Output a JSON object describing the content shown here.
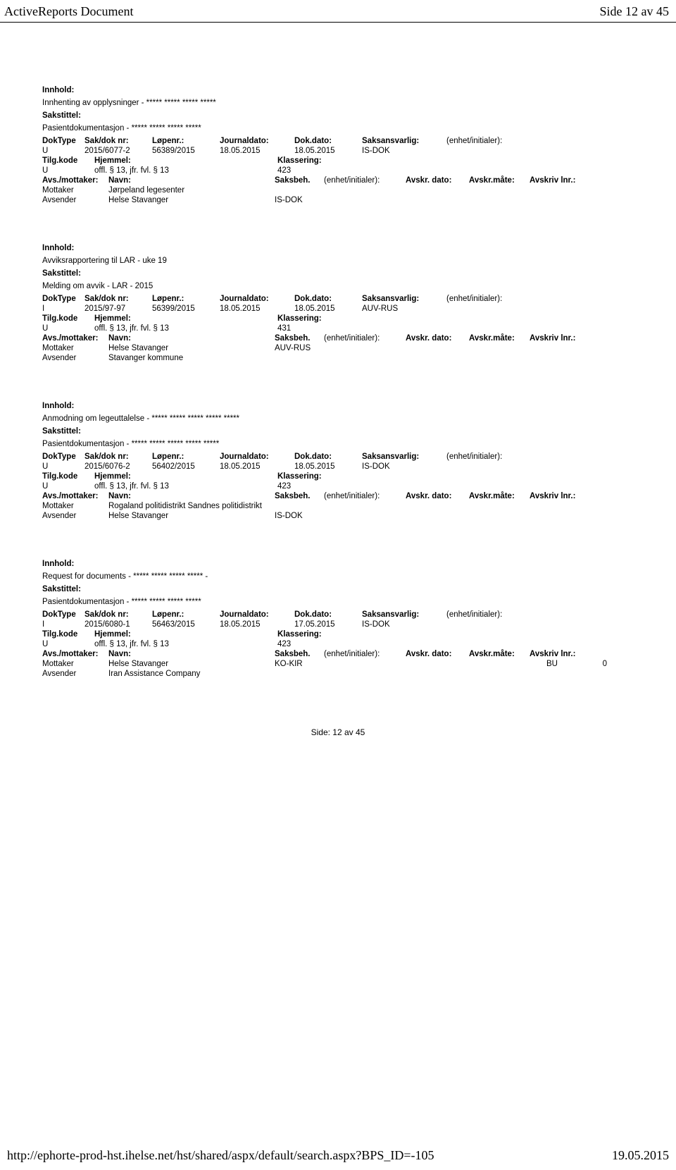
{
  "header": {
    "title": "ActiveReports Document",
    "pageinfo": "Side 12 av 45"
  },
  "labels": {
    "innhold": "Innhold:",
    "sakstittel": "Sakstittel:",
    "doktype": "DokType",
    "sakdok": "Sak/dok nr:",
    "lopenr": "Løpenr.:",
    "journaldato": "Journaldato:",
    "dokdato": "Dok.dato:",
    "saksansvarlig": "Saksansvarlig:",
    "enhet": "(enhet/initialer):",
    "tilgkode": "Tilg.kode",
    "hjemmel": "Hjemmel:",
    "klassering": "Klassering:",
    "avsmottaker": "Avs./mottaker:",
    "navn": "Navn:",
    "saksbeh": "Saksbeh.",
    "avskrdato": "Avskr. dato:",
    "avskrmate": "Avskr.måte:",
    "avskrivlnr": "Avskriv lnr.:",
    "mottaker": "Mottaker",
    "avsender": "Avsender"
  },
  "entries": [
    {
      "innhold": "Innhenting av opplysninger - ***** ***** ***** *****",
      "sakstittel": "Pasientdokumentasjon - ***** ***** ***** *****",
      "doktype": "U",
      "sakdok": "2015/6077-2",
      "lopenr": "56389/2015",
      "journaldato": "18.05.2015",
      "dokdato": "18.05.2015",
      "saksansvarlig": "IS-DOK",
      "tilgkode": "U",
      "hjemmel": "offl. § 13, jfr. fvl. § 13",
      "klassering": "423",
      "mottaker": "Jørpeland legesenter",
      "mottaker_code": "",
      "avsender": "Helse Stavanger",
      "avsender_code": "IS-DOK",
      "bu": "",
      "zero": ""
    },
    {
      "innhold": "Avviksrapportering til LAR - uke 19",
      "sakstittel": "Melding om avvik - LAR - 2015",
      "doktype": "I",
      "sakdok": "2015/97-97",
      "lopenr": "56399/2015",
      "journaldato": "18.05.2015",
      "dokdato": "18.05.2015",
      "saksansvarlig": "AUV-RUS",
      "tilgkode": "U",
      "hjemmel": "offl. § 13, jfr. fvl. § 13",
      "klassering": "431",
      "mottaker": "Helse Stavanger",
      "mottaker_code": "AUV-RUS",
      "avsender": "Stavanger kommune",
      "avsender_code": "",
      "bu": "",
      "zero": ""
    },
    {
      "innhold": "Anmodning om legeuttalelse - ***** ***** ***** ***** *****",
      "sakstittel": "Pasientdokumentasjon - ***** ***** ***** ***** *****",
      "doktype": "U",
      "sakdok": "2015/6076-2",
      "lopenr": "56402/2015",
      "journaldato": "18.05.2015",
      "dokdato": "18.05.2015",
      "saksansvarlig": "IS-DOK",
      "tilgkode": "U",
      "hjemmel": "offl. § 13, jfr. fvl. § 13",
      "klassering": "423",
      "mottaker": "Rogaland politidistrikt Sandnes politidistrikt",
      "mottaker_code": "",
      "avsender": "Helse Stavanger",
      "avsender_code": "IS-DOK",
      "bu": "",
      "zero": ""
    },
    {
      "innhold": "Request for documents - ***** ***** ***** ***** -",
      "sakstittel": "Pasientdokumentasjon - ***** ***** ***** *****",
      "doktype": "I",
      "sakdok": "2015/6080-1",
      "lopenr": "56463/2015",
      "journaldato": "18.05.2015",
      "dokdato": "17.05.2015",
      "saksansvarlig": "IS-DOK",
      "tilgkode": "U",
      "hjemmel": "offl. § 13, jfr. fvl. § 13",
      "klassering": "423",
      "mottaker": "Helse Stavanger",
      "mottaker_code": "KO-KIR",
      "avsender": "Iran Assistance Company",
      "avsender_code": "",
      "bu": "BU",
      "zero": "0"
    }
  ],
  "footer": {
    "side": "Side: 12 av  45",
    "url": "http://ephorte-prod-hst.ihelse.net/hst/shared/aspx/default/search.aspx?BPS_ID=-105",
    "date": "19.05.2015"
  }
}
